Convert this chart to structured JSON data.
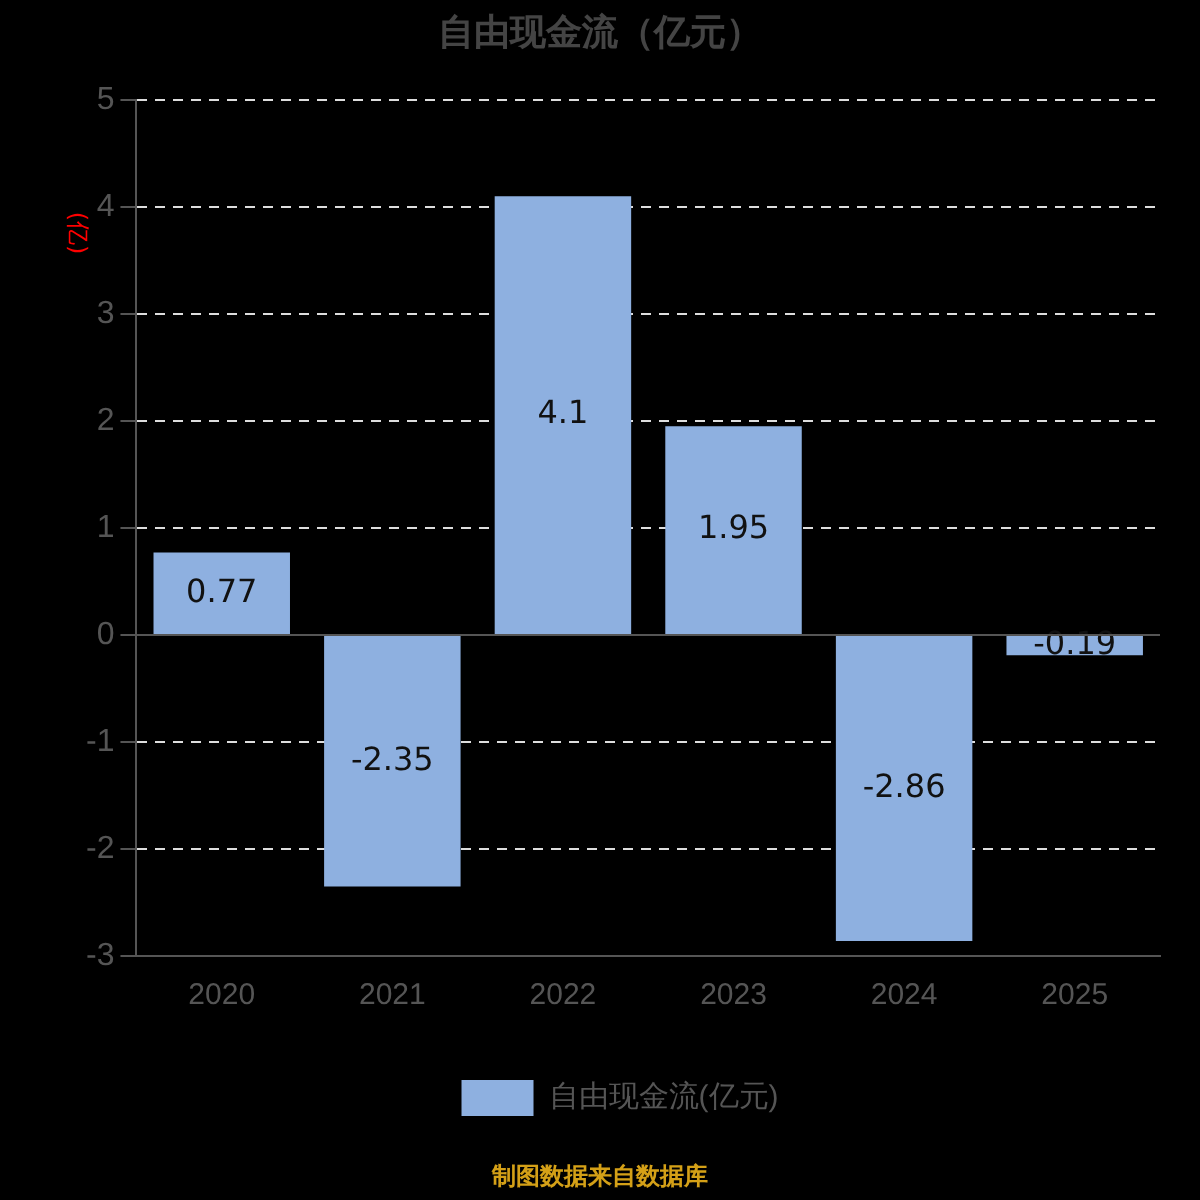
{
  "chart_data": {
    "type": "bar",
    "title": "自由现金流（亿元）",
    "ylabel": "(亿)",
    "categories": [
      "2020",
      "2021",
      "2022",
      "2023",
      "2024",
      "2025"
    ],
    "series": [
      {
        "name": "自由现金流(亿元)",
        "color": "#8eb0e0",
        "values": [
          0.77,
          -2.35,
          4.1,
          1.95,
          -2.86,
          -0.19
        ]
      }
    ],
    "ylim": [
      -3,
      5
    ],
    "yticks": [
      -3,
      -2,
      -1,
      0,
      1,
      2,
      3,
      4,
      5
    ],
    "grid": "y",
    "legend": "bottom",
    "data_labels": true,
    "annotations": [
      "制图数据来自数据库"
    ]
  }
}
